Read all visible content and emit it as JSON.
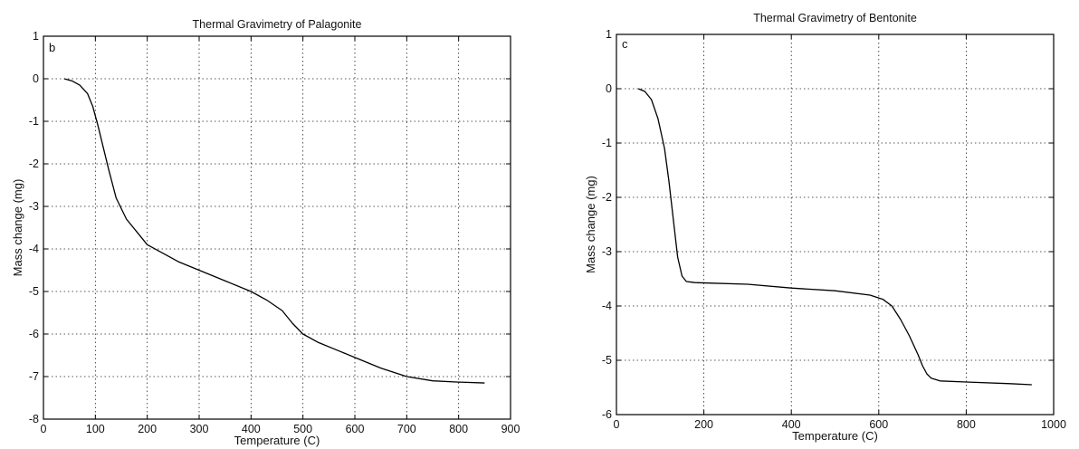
{
  "chart_data": [
    {
      "type": "line",
      "panel_label": "b",
      "title": "Thermal Gravimetry of Palagonite",
      "xlabel": "Temperature (C)",
      "ylabel": "Mass change (mg)",
      "xlim": [
        0,
        900
      ],
      "ylim": [
        -8,
        1
      ],
      "xticks": [
        0,
        100,
        200,
        300,
        400,
        500,
        600,
        700,
        800,
        900
      ],
      "yticks": [
        -8,
        -7,
        -6,
        -5,
        -4,
        -3,
        -2,
        -1,
        0,
        1
      ],
      "grid": true,
      "series": [
        {
          "x": [
            40,
            55,
            70,
            85,
            95,
            105,
            115,
            125,
            140,
            160,
            180,
            200,
            230,
            260,
            300,
            350,
            400,
            430,
            460,
            480,
            500,
            530,
            570,
            600,
            650,
            700,
            750,
            800,
            850
          ],
          "y": [
            0,
            -0.05,
            -0.15,
            -0.35,
            -0.65,
            -1.1,
            -1.6,
            -2.1,
            -2.8,
            -3.3,
            -3.6,
            -3.9,
            -4.1,
            -4.3,
            -4.5,
            -4.75,
            -5.0,
            -5.2,
            -5.45,
            -5.75,
            -6.0,
            -6.2,
            -6.4,
            -6.55,
            -6.8,
            -7.0,
            -7.1,
            -7.13,
            -7.15
          ]
        }
      ]
    },
    {
      "type": "line",
      "panel_label": "c",
      "title": "Thermal Gravimetry of Bentonite",
      "xlabel": "Temperature (C)",
      "ylabel": "Mass change (mg)",
      "xlim": [
        0,
        1000
      ],
      "ylim": [
        -6,
        1
      ],
      "xticks": [
        0,
        200,
        400,
        600,
        800,
        1000
      ],
      "yticks": [
        -6,
        -5,
        -4,
        -3,
        -2,
        -1,
        0,
        1
      ],
      "grid": true,
      "series": [
        {
          "x": [
            50,
            65,
            80,
            95,
            110,
            120,
            130,
            140,
            150,
            160,
            180,
            220,
            300,
            400,
            500,
            580,
            610,
            630,
            650,
            670,
            690,
            700,
            710,
            720,
            740,
            800,
            900,
            950
          ],
          "y": [
            0,
            -0.05,
            -0.2,
            -0.55,
            -1.1,
            -1.7,
            -2.4,
            -3.1,
            -3.45,
            -3.55,
            -3.57,
            -3.58,
            -3.6,
            -3.67,
            -3.72,
            -3.8,
            -3.88,
            -4.0,
            -4.25,
            -4.55,
            -4.9,
            -5.1,
            -5.25,
            -5.33,
            -5.38,
            -5.4,
            -5.43,
            -5.45
          ]
        }
      ]
    }
  ]
}
